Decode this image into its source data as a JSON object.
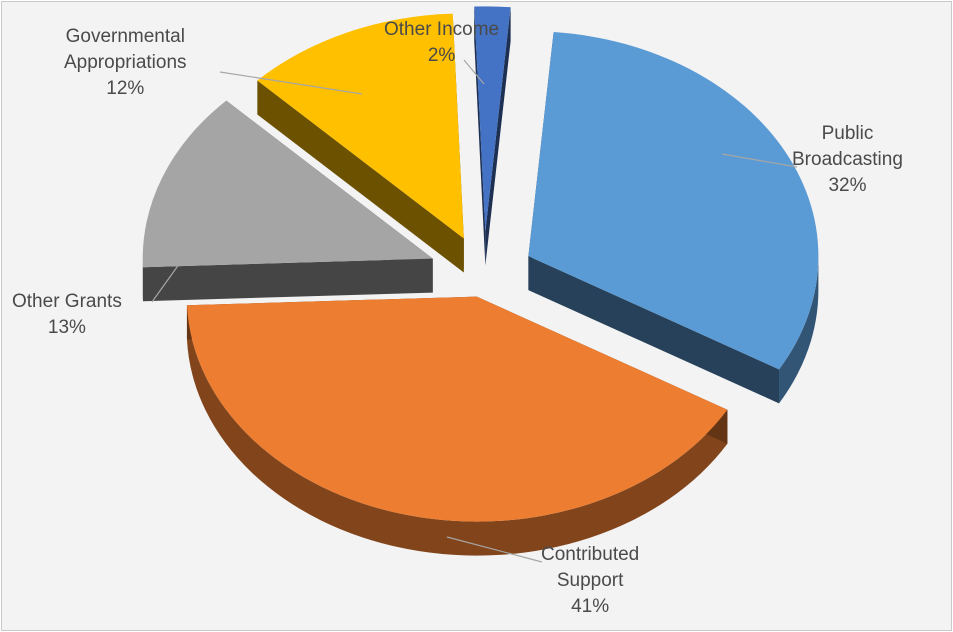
{
  "chart_data": {
    "type": "pie",
    "title": "",
    "slices": [
      {
        "key": "public",
        "label_lines": [
          "Public",
          "Broadcasting"
        ],
        "percent_label": "32%",
        "value": 32,
        "color": "#5B9BD5"
      },
      {
        "key": "contributed",
        "label_lines": [
          "Contributed",
          "Support"
        ],
        "percent_label": "41%",
        "value": 41,
        "color": "#ED7D31"
      },
      {
        "key": "grants",
        "label_lines": [
          "Other Grants"
        ],
        "percent_label": "13%",
        "value": 13,
        "color": "#A5A5A5"
      },
      {
        "key": "gov",
        "label_lines": [
          "Governmental",
          "Appropriations"
        ],
        "percent_label": "12%",
        "value": 12,
        "color": "#FFC000"
      },
      {
        "key": "other",
        "label_lines": [
          "Other Income"
        ],
        "percent_label": "2%",
        "value": 2,
        "color": "#4472C4"
      }
    ],
    "style": "3d-exploded-pie",
    "legend": "none",
    "data_labels": "outside-with-leader-lines"
  }
}
